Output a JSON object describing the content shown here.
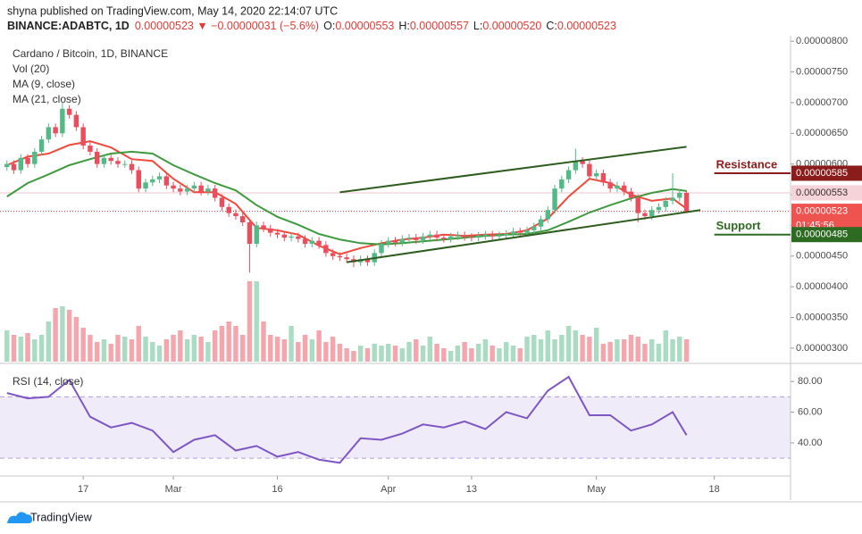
{
  "header": {
    "byline": "shyna published on TradingView.com, May 14, 2020 22:14:07 UTC",
    "symbol": "BINANCE:ADABTC, 1D",
    "last": "0.00000523 ▼ −0.00000031 (−5.6%)",
    "ohlc": [
      {
        "label": "O:",
        "value": "0.00000553"
      },
      {
        "label": "H:",
        "value": "0.00000557"
      },
      {
        "label": "L:",
        "value": "0.00000520"
      },
      {
        "label": "C:",
        "value": "0.00000523"
      }
    ]
  },
  "footer": {
    "brand": "TradingView"
  },
  "chart_data": {
    "type": "candlestick",
    "title": "Cardano / Bitcoin, 1D, BINANCE",
    "up_color": "#53b987",
    "down_color": "#eb4d5c",
    "open": [
      5.95e-06,
      6e-06,
      5.9e-06,
      6.1e-06,
      6e-06,
      6.2e-06,
      6.4e-06,
      6.6e-06,
      6.5e-06,
      6.9e-06,
      6.8e-06,
      6.6e-06,
      6.3e-06,
      6.2e-06,
      6e-06,
      6.1e-06,
      6.05e-06,
      6e-06,
      6e-06,
      5.9e-06,
      5.6e-06,
      5.7e-06,
      5.75e-06,
      5.8e-06,
      5.65e-06,
      5.6e-06,
      5.55e-06,
      5.6e-06,
      5.65e-06,
      5.55e-06,
      5.6e-06,
      5.45e-06,
      5.3e-06,
      5.2e-06,
      5.15e-06,
      5.05e-06,
      4.7e-06,
      5e-06,
      4.95e-06,
      4.88e-06,
      4.85e-06,
      4.8e-06,
      4.82e-06,
      4.78e-06,
      4.7e-06,
      4.75e-06,
      4.68e-06,
      4.55e-06,
      4.5e-06,
      4.48e-06,
      4.45e-06,
      4.4e-06,
      4.45e-06,
      4.4e-06,
      4.55e-06,
      4.7e-06,
      4.75e-06,
      4.72e-06,
      4.78e-06,
      4.8e-06,
      4.76e-06,
      4.82e-06,
      4.85e-06,
      4.8e-06,
      4.78e-06,
      4.82e-06,
      4.84e-06,
      4.81e-06,
      4.8e-06,
      4.83e-06,
      4.85e-06,
      4.82e-06,
      4.84e-06,
      4.86e-06,
      4.9e-06,
      4.88e-06,
      4.92e-06,
      4.98e-06,
      5.1e-06,
      5.25e-06,
      5.6e-06,
      5.75e-06,
      5.9e-06,
      6.05e-06,
      6e-06,
      5.8e-06,
      5.85e-06,
      5.7e-06,
      5.6e-06,
      5.65e-06,
      5.55e-06,
      5.45e-06,
      5.2e-06,
      5.15e-06,
      5.25e-06,
      5.3e-06,
      5.4e-06,
      5.45e-06,
      5.53e-06
    ],
    "high": [
      6.06e-06,
      6.06e-06,
      6.16e-06,
      6.16e-06,
      6.26e-06,
      6.46e-06,
      6.66e-06,
      6.66e-06,
      7e-06,
      6.96e-06,
      6.86e-06,
      6.66e-06,
      6.36e-06,
      6.26e-06,
      6.16e-06,
      6.16e-06,
      6.11e-06,
      6.06e-06,
      6.06e-06,
      5.96e-06,
      5.76e-06,
      5.81e-06,
      5.86e-06,
      5.86e-06,
      5.71e-06,
      5.66e-06,
      5.66e-06,
      5.71e-06,
      5.71e-06,
      5.66e-06,
      5.66e-06,
      5.51e-06,
      5.36e-06,
      5.26e-06,
      5.21e-06,
      5.1e-06,
      5.06e-06,
      5.06e-06,
      5.01e-06,
      4.94e-06,
      4.91e-06,
      4.88e-06,
      4.88e-06,
      4.84e-06,
      4.81e-06,
      4.81e-06,
      4.74e-06,
      4.61e-06,
      4.56e-06,
      4.54e-06,
      4.51e-06,
      4.51e-06,
      4.51e-06,
      4.61e-06,
      4.76e-06,
      4.81e-06,
      4.81e-06,
      4.84e-06,
      4.86e-06,
      4.86e-06,
      4.88e-06,
      4.91e-06,
      4.91e-06,
      4.86e-06,
      4.88e-06,
      4.9e-06,
      4.9e-06,
      4.87e-06,
      4.89e-06,
      4.91e-06,
      4.91e-06,
      4.9e-06,
      4.92e-06,
      4.96e-06,
      4.96e-06,
      4.98e-06,
      5.04e-06,
      5.16e-06,
      5.31e-06,
      5.66e-06,
      5.81e-06,
      5.96e-06,
      6.25e-06,
      6.11e-06,
      6.06e-06,
      5.91e-06,
      5.91e-06,
      5.76e-06,
      5.71e-06,
      5.71e-06,
      5.61e-06,
      5.51e-06,
      5.26e-06,
      5.31e-06,
      5.36e-06,
      5.46e-06,
      5.85e-06,
      5.59e-06,
      5.57e-06
    ],
    "low": [
      5.89e-06,
      5.84e-06,
      5.84e-06,
      5.94e-06,
      5.94e-06,
      6.14e-06,
      6.34e-06,
      6.44e-06,
      6.44e-06,
      6.74e-06,
      6.54e-06,
      6.24e-06,
      6.14e-06,
      5.94e-06,
      5.94e-06,
      5.99e-06,
      5.94e-06,
      5.94e-06,
      5.84e-06,
      5.54e-06,
      5.54e-06,
      5.64e-06,
      5.69e-06,
      5.59e-06,
      5.54e-06,
      5.49e-06,
      5.49e-06,
      5.54e-06,
      5.49e-06,
      5.49e-06,
      5.39e-06,
      5.24e-06,
      5.14e-06,
      5.09e-06,
      4.99e-06,
      4.23e-06,
      4.64e-06,
      4.89e-06,
      4.82e-06,
      4.79e-06,
      4.74e-06,
      4.74e-06,
      4.72e-06,
      4.64e-06,
      4.64e-06,
      4.62e-06,
      4.49e-06,
      4.44e-06,
      4.42e-06,
      4.39e-06,
      4.32e-06,
      4.34e-06,
      4.34e-06,
      4.34e-06,
      4.49e-06,
      4.64e-06,
      4.66e-06,
      4.66e-06,
      4.72e-06,
      4.7e-06,
      4.7e-06,
      4.76e-06,
      4.74e-06,
      4.72e-06,
      4.72e-06,
      4.76e-06,
      4.75e-06,
      4.74e-06,
      4.74e-06,
      4.77e-06,
      4.76e-06,
      4.76e-06,
      4.78e-06,
      4.8e-06,
      4.82e-06,
      4.82e-06,
      4.86e-06,
      4.92e-06,
      5.04e-06,
      5.19e-06,
      5.54e-06,
      5.69e-06,
      5.84e-06,
      5.94e-06,
      5.74e-06,
      5.74e-06,
      5.64e-06,
      5.54e-06,
      5.54e-06,
      5.49e-06,
      5.39e-06,
      5.05e-06,
      5.09e-06,
      5.09e-06,
      5.19e-06,
      5.24e-06,
      5.34e-06,
      5.39e-06,
      5.2e-06
    ],
    "close": [
      6e-06,
      5.9e-06,
      6.1e-06,
      6e-06,
      6.2e-06,
      6.4e-06,
      6.6e-06,
      6.5e-06,
      6.9e-06,
      6.8e-06,
      6.6e-06,
      6.3e-06,
      6.2e-06,
      6e-06,
      6.1e-06,
      6.05e-06,
      6e-06,
      6e-06,
      5.9e-06,
      5.6e-06,
      5.7e-06,
      5.75e-06,
      5.8e-06,
      5.65e-06,
      5.6e-06,
      5.55e-06,
      5.6e-06,
      5.65e-06,
      5.55e-06,
      5.6e-06,
      5.45e-06,
      5.3e-06,
      5.2e-06,
      5.15e-06,
      5.05e-06,
      4.7e-06,
      5e-06,
      4.95e-06,
      4.88e-06,
      4.85e-06,
      4.8e-06,
      4.82e-06,
      4.78e-06,
      4.7e-06,
      4.75e-06,
      4.68e-06,
      4.55e-06,
      4.5e-06,
      4.48e-06,
      4.45e-06,
      4.4e-06,
      4.45e-06,
      4.4e-06,
      4.55e-06,
      4.7e-06,
      4.75e-06,
      4.72e-06,
      4.78e-06,
      4.8e-06,
      4.76e-06,
      4.82e-06,
      4.85e-06,
      4.8e-06,
      4.78e-06,
      4.82e-06,
      4.84e-06,
      4.81e-06,
      4.8e-06,
      4.83e-06,
      4.85e-06,
      4.82e-06,
      4.84e-06,
      4.86e-06,
      4.9e-06,
      4.88e-06,
      4.92e-06,
      4.98e-06,
      5.1e-06,
      5.25e-06,
      5.6e-06,
      5.75e-06,
      5.9e-06,
      6.05e-06,
      6e-06,
      5.8e-06,
      5.85e-06,
      5.7e-06,
      5.6e-06,
      5.65e-06,
      5.55e-06,
      5.45e-06,
      5.2e-06,
      5.15e-06,
      5.25e-06,
      5.3e-06,
      5.4e-06,
      5.45e-06,
      5.53e-06,
      5.23e-06
    ],
    "volume": {
      "name": "Vol (20)",
      "values": [
        35,
        30,
        28,
        32,
        25,
        30,
        45,
        60,
        62,
        58,
        50,
        38,
        30,
        22,
        25,
        20,
        30,
        28,
        25,
        40,
        28,
        22,
        18,
        25,
        30,
        35,
        25,
        30,
        28,
        22,
        35,
        40,
        45,
        40,
        30,
        90,
        90,
        45,
        30,
        28,
        25,
        40,
        22,
        30,
        25,
        35,
        22,
        28,
        20,
        15,
        12,
        18,
        15,
        20,
        18,
        20,
        18,
        15,
        22,
        25,
        18,
        28,
        20,
        15,
        12,
        18,
        22,
        15,
        20,
        25,
        18,
        15,
        22,
        18,
        15,
        28,
        30,
        25,
        35,
        25,
        30,
        40,
        35,
        30,
        28,
        38,
        20,
        22,
        25,
        25,
        30,
        28,
        20,
        25,
        20,
        35,
        25,
        28,
        25
      ]
    },
    "ma": [
      {
        "name": "MA (9, close)",
        "color": "#ef4a3c",
        "x": [
          0,
          3,
          6,
          9,
          12,
          15,
          18,
          21,
          24,
          27,
          30,
          33,
          36,
          39,
          42,
          45,
          48,
          51,
          54,
          57,
          60,
          63,
          66,
          69,
          72,
          75,
          78,
          81,
          84,
          87,
          90,
          93,
          96,
          98
        ],
        "values": [
          5.98e-06,
          6.12e-06,
          6.17e-06,
          6.31e-06,
          6.37e-06,
          6.27e-06,
          6.08e-06,
          6.05e-06,
          5.76e-06,
          5.54e-06,
          5.54e-06,
          5.35e-06,
          4.96e-06,
          4.92e-06,
          4.85e-06,
          4.67e-06,
          4.53e-06,
          4.63e-06,
          4.71e-06,
          4.77e-06,
          4.8e-06,
          4.85e-06,
          4.83e-06,
          4.85e-06,
          4.86e-06,
          4.92e-06,
          5.11e-06,
          5.47e-06,
          5.76e-06,
          5.69e-06,
          5.5e-06,
          5.4e-06,
          5.44e-06,
          5.27e-06
        ]
      },
      {
        "name": "MA (21, close)",
        "color": "#3f9a3f",
        "x": [
          0,
          3,
          6,
          9,
          12,
          15,
          18,
          21,
          24,
          27,
          30,
          33,
          36,
          39,
          42,
          45,
          48,
          51,
          54,
          57,
          60,
          63,
          66,
          69,
          72,
          75,
          78,
          81,
          84,
          87,
          90,
          93,
          96,
          98
        ],
        "values": [
          5.47e-06,
          5.69e-06,
          5.83e-06,
          5.98e-06,
          6.08e-06,
          6.17e-06,
          6.2e-06,
          6.17e-06,
          5.98e-06,
          5.83e-06,
          5.69e-06,
          5.57e-06,
          5.33e-06,
          5.14e-06,
          5.01e-06,
          4.86e-06,
          4.77e-06,
          4.71e-06,
          4.69e-06,
          4.71e-06,
          4.74e-06,
          4.77e-06,
          4.8e-06,
          4.83e-06,
          4.85e-06,
          4.86e-06,
          4.92e-06,
          5.06e-06,
          5.21e-06,
          5.33e-06,
          5.44e-06,
          5.53e-06,
          5.59e-06,
          5.56e-06
        ]
      }
    ],
    "trendlines": [
      {
        "color": "#2f5d1f",
        "x": [
          48,
          98
        ],
        "values": [
          5.54e-06,
          6.28e-06
        ]
      },
      {
        "color": "#2f5d1f",
        "x": [
          49,
          100
        ],
        "values": [
          4.4e-06,
          5.25e-06
        ]
      }
    ],
    "levels": [
      {
        "name": "Resistance",
        "value": 5.85e-06,
        "color": "#8b1c1c",
        "x_start": 102
      },
      {
        "name": "Support",
        "value": 4.85e-06,
        "color": "#2e6b22",
        "x_start": 102
      }
    ],
    "price_lines": [
      {
        "value": 5.53e-06,
        "color": "#f2c4cc",
        "style": "solid"
      },
      {
        "value": 5.23e-06,
        "color": "#e53935",
        "style": "dotted"
      }
    ],
    "price_badges": [
      {
        "value": 5.85e-06,
        "label": "0.00000585",
        "color": "#8b1c1c",
        "text_color": "#ffffff"
      },
      {
        "value": 5.53e-06,
        "label": "0.00000553",
        "color": "#f6d3d8",
        "text_color": "#333333"
      },
      {
        "value": 5.23e-06,
        "label": "0.00000523",
        "color": "#ef5350",
        "text_color": "#ffffff",
        "countdown": "01:45:56"
      },
      {
        "value": 4.85e-06,
        "label": "0.00000485",
        "color": "#2e6b22",
        "text_color": "#ffffff"
      }
    ],
    "xlim": [
      -1,
      113
    ],
    "xticks": [
      {
        "value": 11,
        "label": "17"
      },
      {
        "value": 24,
        "label": "Mar"
      },
      {
        "value": 39,
        "label": "16"
      },
      {
        "value": 55,
        "label": "Apr"
      },
      {
        "value": 67,
        "label": "13"
      },
      {
        "value": 85,
        "label": "May"
      },
      {
        "value": 102,
        "label": "18"
      }
    ],
    "ylim": [
      2.78e-06,
      8.09e-06
    ],
    "yticks": [
      {
        "value": 8e-06,
        "label": "0.00000800"
      },
      {
        "value": 7.5e-06,
        "label": "0.00000750"
      },
      {
        "value": 7e-06,
        "label": "0.00000700"
      },
      {
        "value": 6.5e-06,
        "label": "0.00000650"
      },
      {
        "value": 6e-06,
        "label": "0.00000600"
      },
      {
        "value": 5.5e-06,
        "label": "0.00000550"
      },
      {
        "value": 5e-06,
        "label": "0.00000500"
      },
      {
        "value": 4.5e-06,
        "label": "0.00000450"
      },
      {
        "value": 4e-06,
        "label": "0.00000400"
      },
      {
        "value": 3.5e-06,
        "label": "0.00000350"
      },
      {
        "value": 3e-06,
        "label": "0.00000300"
      }
    ],
    "rsi": {
      "name": "RSI (14, close)",
      "color": "#7e57c2",
      "x": [
        0,
        3,
        6,
        9,
        12,
        15,
        18,
        21,
        24,
        27,
        30,
        33,
        36,
        39,
        42,
        45,
        48,
        51,
        54,
        57,
        60,
        63,
        66,
        69,
        72,
        75,
        78,
        81,
        84,
        87,
        90,
        93,
        96,
        98
      ],
      "values": [
        72.5,
        69,
        70,
        81,
        57,
        50,
        53,
        48,
        34,
        42,
        45,
        35,
        38,
        31,
        34,
        29,
        27,
        43,
        42,
        46,
        52,
        50,
        54,
        49,
        60,
        56,
        74,
        83,
        58,
        58,
        48,
        52,
        60,
        45
      ],
      "ylim": [
        19,
        90
      ],
      "band": [
        30,
        70
      ],
      "yticks": [
        {
          "value": 80,
          "label": "80.00"
        },
        {
          "value": 60,
          "label": "60.00"
        },
        {
          "value": 40,
          "label": "40.00"
        }
      ]
    }
  }
}
